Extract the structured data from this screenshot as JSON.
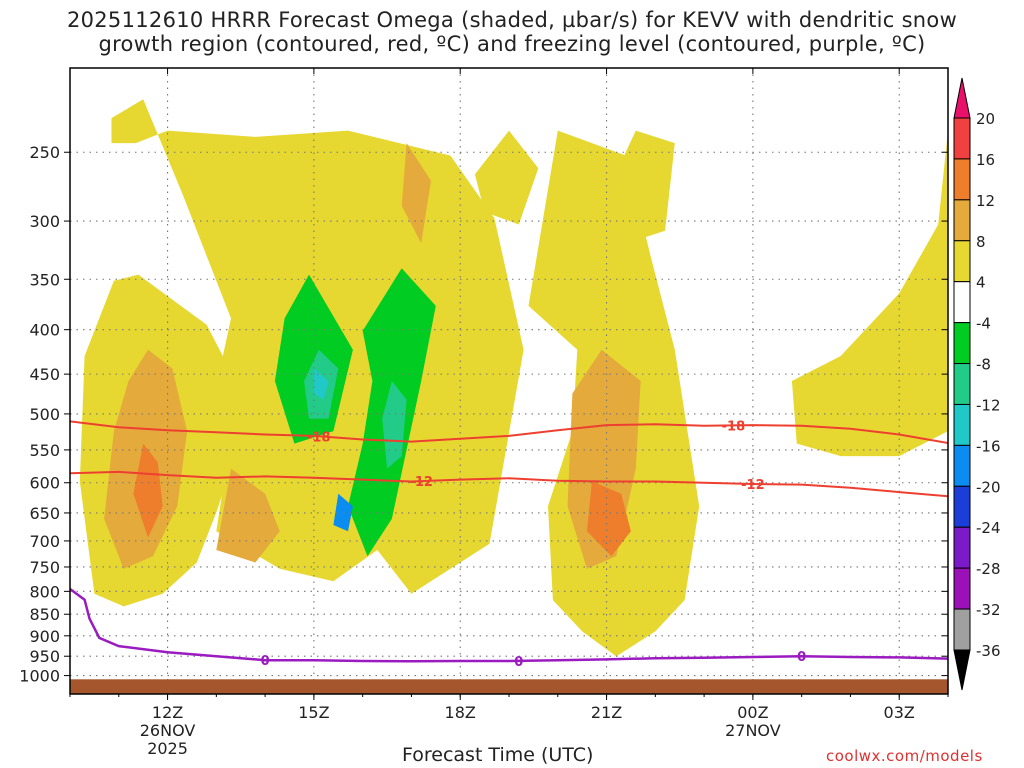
{
  "title_line1": "2025112610 HRRR Forecast Omega (shaded, µbar/s) for KEVV with dendritic snow",
  "title_line2": "growth region (contoured, red, ºC) and freezing level (contoured, purple, ºC)",
  "x_axis_label": "Forecast Time (UTC)",
  "credit": "coolwx.com/models",
  "chart_data": {
    "type": "heatmap",
    "variable": "Omega",
    "units": "µbar/s",
    "x_ticks": [
      {
        "hour": 12,
        "label": "12Z",
        "sub1": "26NOV",
        "sub2": "2025"
      },
      {
        "hour": 15,
        "label": "15Z",
        "sub1": "",
        "sub2": ""
      },
      {
        "hour": 18,
        "label": "18Z",
        "sub1": "",
        "sub2": ""
      },
      {
        "hour": 21,
        "label": "21Z",
        "sub1": "",
        "sub2": ""
      },
      {
        "hour": 24,
        "label": "00Z",
        "sub1": "27NOV",
        "sub2": ""
      },
      {
        "hour": 27,
        "label": "03Z",
        "sub1": "",
        "sub2": ""
      }
    ],
    "x_range_hours": [
      10,
      28
    ],
    "y_axis": "pressure (hPa)",
    "y_ticks": [
      250,
      300,
      350,
      400,
      450,
      500,
      550,
      600,
      650,
      700,
      750,
      800,
      850,
      900,
      950,
      1000
    ],
    "y_range": [
      1050,
      200
    ],
    "grid": true,
    "colorbar": {
      "labels": [
        "20",
        "16",
        "12",
        "8",
        "4",
        "-4",
        "-8",
        "-12",
        "-16",
        "-20",
        "-24",
        "-28",
        "-32",
        "-36"
      ],
      "colors": [
        "#e8106a",
        "#f04040",
        "#ee7e2c",
        "#e4aa3c",
        "#e6d830",
        "#ffffff",
        "#00cc22",
        "#22cc88",
        "#20c8c8",
        "#0a8cf0",
        "#1c3ed8",
        "#7a1ac8",
        "#9c10b8",
        "#a0a0a0",
        "#000000"
      ]
    },
    "omega_regions": [
      {
        "level": "4 to 8",
        "color": "#e6d830",
        "polygon": [
          [
            10.85,
            0.12
          ],
          [
            11.35,
            0.12
          ],
          [
            12.0,
            0.1
          ],
          [
            13.8,
            0.11
          ],
          [
            15.7,
            0.1
          ],
          [
            17.8,
            0.14
          ],
          [
            18.7,
            0.24
          ],
          [
            19.3,
            0.45
          ],
          [
            18.6,
            0.76
          ],
          [
            17.0,
            0.84
          ],
          [
            16.3,
            0.77
          ],
          [
            15.4,
            0.82
          ],
          [
            14.5,
            0.78
          ],
          [
            13.9,
            0.74
          ],
          [
            13.2,
            0.7
          ],
          [
            12.8,
            0.58
          ],
          [
            13.3,
            0.4
          ],
          [
            12.3,
            0.2
          ],
          [
            11.5,
            0.05
          ],
          [
            10.85,
            0.08
          ]
        ]
      },
      {
        "level": "4 to 8",
        "color": "#e6d830",
        "polygon": [
          [
            13.0,
            0.74
          ],
          [
            14.3,
            0.8
          ],
          [
            15.4,
            0.82
          ],
          [
            14.7,
            0.68
          ],
          [
            13.9,
            0.62
          ],
          [
            13.2,
            0.64
          ]
        ]
      },
      {
        "level": "4 to 8",
        "color": "#e6d830",
        "polygon": [
          [
            11.4,
            0.33
          ],
          [
            12.8,
            0.41
          ],
          [
            13.4,
            0.5
          ],
          [
            13.3,
            0.64
          ],
          [
            13.0,
            0.71
          ],
          [
            12.6,
            0.79
          ],
          [
            11.9,
            0.84
          ],
          [
            11.1,
            0.86
          ],
          [
            10.5,
            0.84
          ],
          [
            10.2,
            0.66
          ],
          [
            10.3,
            0.46
          ],
          [
            10.9,
            0.34
          ]
        ]
      },
      {
        "level": "4 to 8",
        "color": "#e6d830",
        "polygon": [
          [
            19.4,
            0.38
          ],
          [
            20.0,
            0.1
          ],
          [
            21.4,
            0.14
          ],
          [
            21.9,
            0.3
          ],
          [
            22.4,
            0.45
          ],
          [
            22.9,
            0.7
          ],
          [
            22.6,
            0.85
          ],
          [
            22.0,
            0.9
          ],
          [
            21.2,
            0.94
          ],
          [
            20.5,
            0.9
          ],
          [
            19.9,
            0.85
          ],
          [
            19.8,
            0.7
          ],
          [
            20.3,
            0.58
          ],
          [
            20.4,
            0.45
          ]
        ]
      },
      {
        "level": "4 to 8",
        "color": "#e6d830",
        "polygon": [
          [
            24.8,
            0.5
          ],
          [
            25.8,
            0.46
          ],
          [
            27.0,
            0.36
          ],
          [
            27.8,
            0.25
          ],
          [
            28.0,
            0.1
          ],
          [
            28.0,
            0.58
          ],
          [
            27.0,
            0.62
          ],
          [
            25.8,
            0.62
          ],
          [
            24.9,
            0.6
          ]
        ]
      },
      {
        "level": "4 to 8",
        "color": "#e6d830",
        "polygon": [
          [
            21.0,
            0.2
          ],
          [
            21.6,
            0.1
          ],
          [
            22.4,
            0.12
          ],
          [
            22.2,
            0.26
          ],
          [
            21.4,
            0.28
          ]
        ]
      },
      {
        "level": "4 to 8",
        "color": "#e6d830",
        "polygon": [
          [
            26.0,
            0.58
          ],
          [
            26.4,
            0.5
          ],
          [
            27.2,
            0.46
          ],
          [
            27.7,
            0.52
          ],
          [
            27.4,
            0.6
          ]
        ]
      },
      {
        "level": "4 to 8",
        "color": "#e6d830",
        "polygon": [
          [
            18.3,
            0.17
          ],
          [
            19.0,
            0.1
          ],
          [
            19.6,
            0.16
          ],
          [
            19.2,
            0.25
          ],
          [
            18.5,
            0.23
          ]
        ]
      },
      {
        "level": "8 to 12",
        "color": "#e4aa3c",
        "polygon": [
          [
            11.6,
            0.45
          ],
          [
            12.1,
            0.48
          ],
          [
            12.4,
            0.58
          ],
          [
            12.2,
            0.7
          ],
          [
            11.7,
            0.78
          ],
          [
            11.1,
            0.8
          ],
          [
            10.7,
            0.72
          ],
          [
            10.9,
            0.58
          ],
          [
            11.2,
            0.5
          ]
        ]
      },
      {
        "level": "8 to 12",
        "color": "#e4aa3c",
        "polygon": [
          [
            13.3,
            0.64
          ],
          [
            14.0,
            0.68
          ],
          [
            14.3,
            0.74
          ],
          [
            13.8,
            0.79
          ],
          [
            13.0,
            0.77
          ]
        ]
      },
      {
        "level": "8 to 12",
        "color": "#e4aa3c",
        "polygon": [
          [
            20.3,
            0.52
          ],
          [
            20.9,
            0.45
          ],
          [
            21.7,
            0.5
          ],
          [
            21.6,
            0.64
          ],
          [
            21.2,
            0.78
          ],
          [
            20.6,
            0.8
          ],
          [
            20.2,
            0.7
          ]
        ]
      },
      {
        "level": "8 to 12",
        "color": "#e4aa3c",
        "polygon": [
          [
            16.9,
            0.12
          ],
          [
            17.4,
            0.18
          ],
          [
            17.2,
            0.28
          ],
          [
            16.8,
            0.22
          ]
        ]
      },
      {
        "level": "12 to 16",
        "color": "#ee7e2c",
        "polygon": [
          [
            11.5,
            0.6
          ],
          [
            11.8,
            0.63
          ],
          [
            11.9,
            0.7
          ],
          [
            11.6,
            0.75
          ],
          [
            11.3,
            0.68
          ]
        ]
      },
      {
        "level": "12 to 16",
        "color": "#ee7e2c",
        "polygon": [
          [
            20.7,
            0.66
          ],
          [
            21.3,
            0.68
          ],
          [
            21.5,
            0.74
          ],
          [
            21.1,
            0.78
          ],
          [
            20.6,
            0.74
          ]
        ]
      },
      {
        "level": "-4 to -8",
        "color": "#00cc22",
        "polygon": [
          [
            14.9,
            0.33
          ],
          [
            15.8,
            0.45
          ],
          [
            15.4,
            0.58
          ],
          [
            14.6,
            0.6
          ],
          [
            14.2,
            0.5
          ],
          [
            14.4,
            0.4
          ]
        ]
      },
      {
        "level": "-4 to -8",
        "color": "#00cc22",
        "polygon": [
          [
            16.8,
            0.32
          ],
          [
            17.5,
            0.38
          ],
          [
            17.2,
            0.5
          ],
          [
            16.6,
            0.72
          ],
          [
            16.1,
            0.78
          ],
          [
            15.7,
            0.7
          ],
          [
            16.0,
            0.6
          ],
          [
            16.2,
            0.5
          ],
          [
            16.0,
            0.42
          ]
        ]
      },
      {
        "level": "-8 to -12",
        "color": "#22cc88",
        "polygon": [
          [
            15.1,
            0.45
          ],
          [
            15.5,
            0.48
          ],
          [
            15.3,
            0.56
          ],
          [
            14.9,
            0.56
          ],
          [
            14.8,
            0.5
          ]
        ]
      },
      {
        "level": "-8 to -12",
        "color": "#22cc88",
        "polygon": [
          [
            16.6,
            0.5
          ],
          [
            16.9,
            0.53
          ],
          [
            16.8,
            0.62
          ],
          [
            16.5,
            0.64
          ],
          [
            16.4,
            0.56
          ]
        ]
      },
      {
        "level": "-12 to -16",
        "color": "#20c8c8",
        "polygon": [
          [
            15.0,
            0.48
          ],
          [
            15.3,
            0.5
          ],
          [
            15.2,
            0.53
          ],
          [
            15.0,
            0.52
          ]
        ]
      },
      {
        "level": "-16 to -20",
        "color": "#0a8cf0",
        "polygon": [
          [
            15.5,
            0.68
          ],
          [
            15.8,
            0.7
          ],
          [
            15.7,
            0.74
          ],
          [
            15.4,
            0.73
          ]
        ]
      }
    ],
    "temperature_contours": [
      {
        "value": -18,
        "label": "-18",
        "color": "#ee4030",
        "points": [
          [
            10,
            510
          ],
          [
            11,
            518
          ],
          [
            12,
            522
          ],
          [
            13,
            525
          ],
          [
            14,
            528
          ],
          [
            15,
            530
          ],
          [
            16,
            535
          ],
          [
            17,
            538
          ],
          [
            18,
            534
          ],
          [
            19,
            530
          ],
          [
            20,
            522
          ],
          [
            21,
            515
          ],
          [
            22,
            514
          ],
          [
            23,
            516
          ],
          [
            24,
            515
          ],
          [
            25,
            516
          ],
          [
            26,
            520
          ],
          [
            27,
            528
          ],
          [
            28,
            540
          ]
        ]
      },
      {
        "value": -12,
        "label": "-12",
        "color": "#ee4030",
        "points": [
          [
            10,
            585
          ],
          [
            11,
            583
          ],
          [
            12,
            588
          ],
          [
            13,
            592
          ],
          [
            14,
            590
          ],
          [
            15,
            592
          ],
          [
            16,
            595
          ],
          [
            17,
            598
          ],
          [
            18,
            595
          ],
          [
            19,
            593
          ],
          [
            20,
            597
          ],
          [
            21,
            598
          ],
          [
            22,
            598
          ],
          [
            23,
            600
          ],
          [
            24,
            602
          ],
          [
            25,
            603
          ],
          [
            26,
            608
          ],
          [
            27,
            615
          ],
          [
            28,
            622
          ]
        ]
      }
    ],
    "freezing_level": {
      "value": 0,
      "label": "0",
      "color": "#9a1bc0",
      "points": [
        [
          10,
          795
        ],
        [
          10.3,
          818
        ],
        [
          10.4,
          860
        ],
        [
          10.6,
          905
        ],
        [
          11,
          925
        ],
        [
          12,
          940
        ],
        [
          13,
          950
        ],
        [
          14,
          960
        ],
        [
          15,
          960
        ],
        [
          16,
          962
        ],
        [
          17,
          963
        ],
        [
          18,
          962
        ],
        [
          19,
          962
        ],
        [
          20,
          960
        ],
        [
          21,
          958
        ],
        [
          22,
          955
        ],
        [
          23,
          954
        ],
        [
          24,
          952
        ],
        [
          25,
          950
        ],
        [
          26,
          952
        ],
        [
          27,
          953
        ],
        [
          28,
          956
        ]
      ]
    },
    "terrain": {
      "top_hPa": 1010,
      "color": "#a5562c"
    }
  }
}
